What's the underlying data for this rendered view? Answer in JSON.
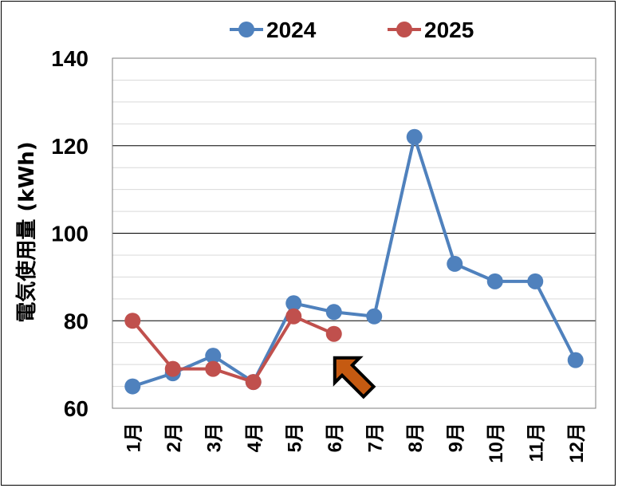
{
  "chart_data": {
    "type": "line",
    "categories": [
      "1月",
      "2月",
      "3月",
      "4月",
      "5月",
      "6月",
      "7月",
      "8月",
      "9月",
      "10月",
      "11月",
      "12月"
    ],
    "series": [
      {
        "name": "2024",
        "color": "#4f81bd",
        "values": [
          65,
          68,
          72,
          66,
          84,
          82,
          81,
          122,
          93,
          89,
          89,
          71
        ]
      },
      {
        "name": "2025",
        "color": "#c0504d",
        "values": [
          80,
          69,
          69,
          66,
          81,
          77,
          null,
          null,
          null,
          null,
          null,
          null
        ]
      }
    ],
    "ylabel": "電気使用量 (kWh)",
    "ylim": [
      60,
      140
    ],
    "yticks": [
      60,
      80,
      100,
      120,
      140
    ],
    "grid": true,
    "legend_position": "top",
    "annotation": {
      "type": "arrow",
      "color": "#e46c0a",
      "points_to_category": "6月"
    }
  }
}
